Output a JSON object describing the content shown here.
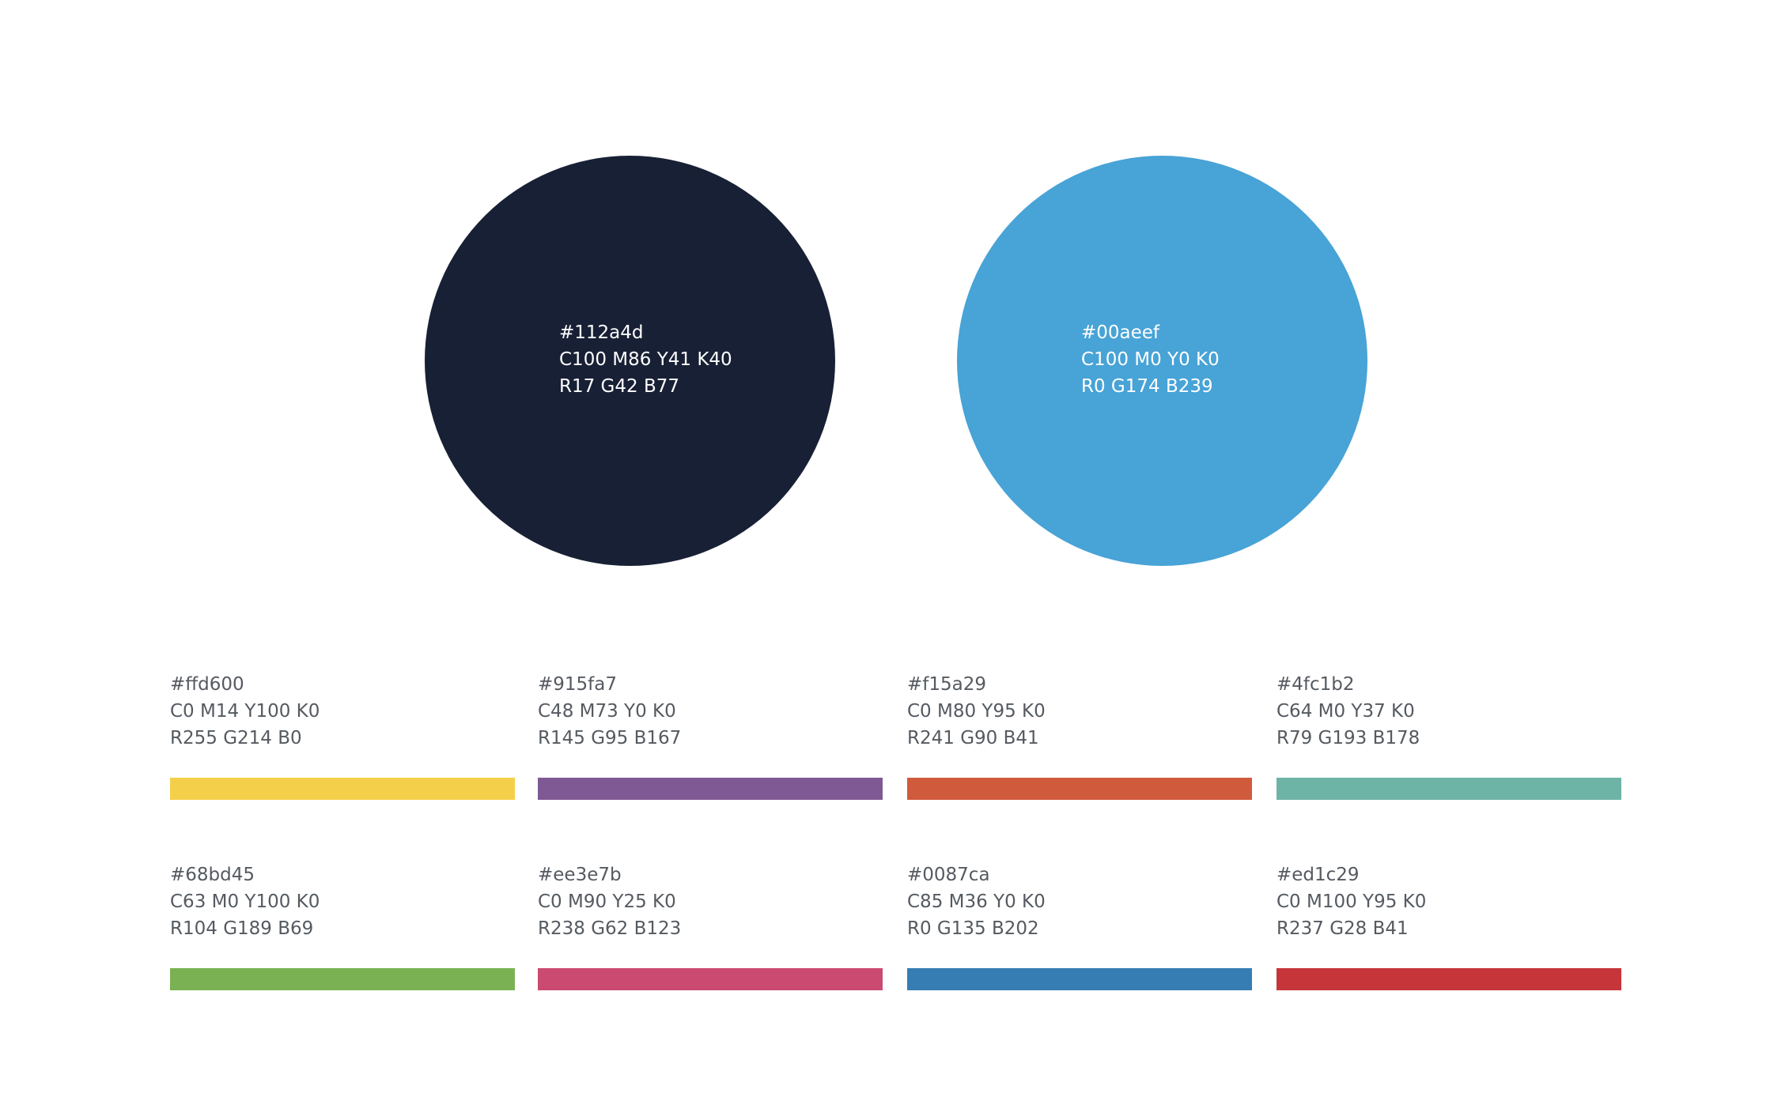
{
  "primary": [
    {
      "hex": "#112a4d",
      "cmyk": "C100 M86 Y41 K40",
      "rgb": "R17 G42 B77",
      "color": "#182035"
    },
    {
      "hex": "#00aeef",
      "cmyk": "C100 M0 Y0 K0",
      "rgb": "R0 G174 B239",
      "color": "#48a3d6"
    }
  ],
  "secondary": [
    {
      "hex": "#ffd600",
      "cmyk": "C0 M14 Y100 K0",
      "rgb": "R255 G214 B0",
      "color": "#f4d04a"
    },
    {
      "hex": "#915fa7",
      "cmyk": "C48 M73 Y0 K0",
      "rgb": "R145 G95 B167",
      "color": "#7f5993"
    },
    {
      "hex": "#f15a29",
      "cmyk": "C0 M80 Y95 K0",
      "rgb": "R241 G90 B41",
      "color": "#d05b3c"
    },
    {
      "hex": "#4fc1b2",
      "cmyk": "C64 M0 Y37 K0",
      "rgb": "R79 G193 B178",
      "color": "#6db4a6"
    },
    {
      "hex": "#68bd45",
      "cmyk": "C63 M0 Y100 K0",
      "rgb": "R104 G189 B69",
      "color": "#7ab253"
    },
    {
      "hex": "#ee3e7b",
      "cmyk": "C0 M90 Y25 K0",
      "rgb": "R238 G62 B123",
      "color": "#cb4a72"
    },
    {
      "hex": "#0087ca",
      "cmyk": "C85 M36 Y0 K0",
      "rgb": "R0 G135 B202",
      "color": "#357db3"
    },
    {
      "hex": "#ed1c29",
      "cmyk": "C0 M100 Y95 K0",
      "rgb": "R237 G28 B41",
      "color": "#c6353a"
    }
  ]
}
